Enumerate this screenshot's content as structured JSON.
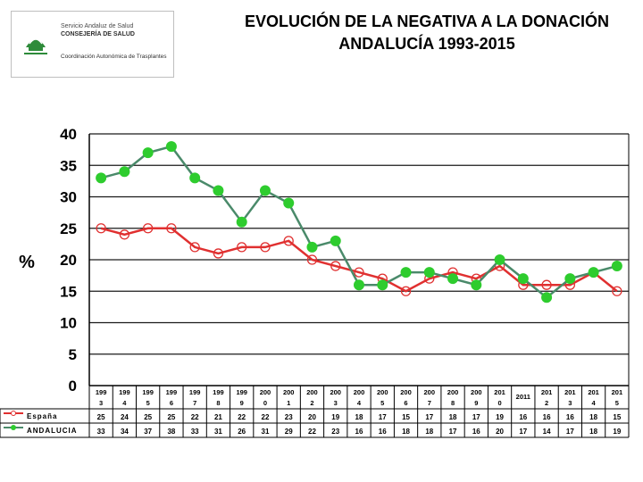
{
  "logo": {
    "line1": "Servicio Andaluz de Salud",
    "line2": "CONSEJERÍA DE SALUD",
    "line3": "Coordinación Autonómica de Trasplantes"
  },
  "chart_data": {
    "type": "line",
    "title_line1": "EVOLUCIÓN DE LA NEGATIVA A LA DONACIÓN",
    "title_line2": "ANDALUCÍA 1993-2015",
    "ylabel": "%",
    "ylim": [
      0,
      40
    ],
    "yticks": [
      0,
      5,
      10,
      15,
      20,
      25,
      30,
      35,
      40
    ],
    "grid": true,
    "categories": [
      [
        "199",
        "3"
      ],
      [
        "199",
        "4"
      ],
      [
        "199",
        "5"
      ],
      [
        "199",
        "6"
      ],
      [
        "199",
        "7"
      ],
      [
        "199",
        "8"
      ],
      [
        "199",
        "9"
      ],
      [
        "200",
        "0"
      ],
      [
        "200",
        "1"
      ],
      [
        "200",
        "2"
      ],
      [
        "200",
        "3"
      ],
      [
        "200",
        "4"
      ],
      [
        "200",
        "5"
      ],
      [
        "200",
        "6"
      ],
      [
        "200",
        "7"
      ],
      [
        "200",
        "8"
      ],
      [
        "200",
        "9"
      ],
      [
        "201",
        "0"
      ],
      [
        "2011",
        ""
      ],
      [
        "201",
        "2"
      ],
      [
        "201",
        "3"
      ],
      [
        "201",
        "4"
      ],
      [
        "201",
        "5"
      ]
    ],
    "series": [
      {
        "name": "España",
        "color": "#e03030",
        "marker": "open-circle",
        "values": [
          25,
          24,
          25,
          25,
          22,
          21,
          22,
          22,
          23,
          20,
          19,
          18,
          17,
          15,
          17,
          18,
          17,
          19,
          16,
          16,
          16,
          18,
          15
        ]
      },
      {
        "name": "ANDALUCIA",
        "color": "#4a8a6a",
        "marker": "filled-circle",
        "marker_color": "#2ecc2e",
        "values": [
          33,
          34,
          37,
          38,
          33,
          31,
          26,
          31,
          29,
          22,
          23,
          16,
          16,
          18,
          18,
          17,
          16,
          20,
          17,
          14,
          17,
          18,
          19
        ]
      }
    ]
  }
}
